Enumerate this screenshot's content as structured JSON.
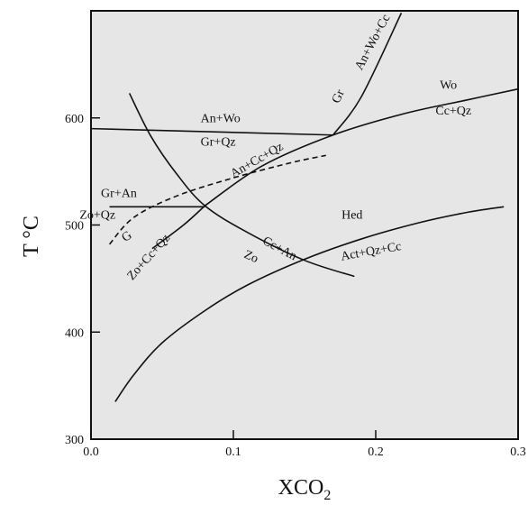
{
  "chart_data": {
    "type": "line",
    "xlabel": "XCO",
    "xlabel_subscript": "2",
    "ylabel": "T °C",
    "xlim": [
      0.0,
      0.3
    ],
    "ylim": [
      300,
      700
    ],
    "x_ticks": [
      "0.0",
      "0.1",
      "0.2",
      "0.3"
    ],
    "y_ticks": [
      "300",
      "400",
      "500",
      "600"
    ],
    "grid": false,
    "series": [
      {
        "id": "an-wo-gr-qz",
        "style": "solid",
        "points": [
          [
            0.0,
            590
          ],
          [
            0.17,
            584
          ]
        ]
      },
      {
        "id": "gr-an-wo-cc",
        "style": "solid",
        "points": [
          [
            0.17,
            584
          ],
          [
            0.19,
            620
          ],
          [
            0.218,
            698
          ]
        ]
      },
      {
        "id": "wo-cc-qz",
        "style": "solid",
        "points": [
          [
            0.08,
            518
          ],
          [
            0.12,
            555
          ],
          [
            0.17,
            584
          ],
          [
            0.22,
            604
          ],
          [
            0.265,
            617
          ],
          [
            0.3,
            627
          ]
        ]
      },
      {
        "id": "zo-cc-qz-an",
        "style": "solid",
        "points": [
          [
            0.043,
            478
          ],
          [
            0.065,
            500
          ],
          [
            0.08,
            518
          ]
        ]
      },
      {
        "id": "gr-an-zo-qz",
        "style": "solid",
        "points": [
          [
            0.013,
            517
          ],
          [
            0.08,
            517
          ]
        ]
      },
      {
        "id": "dashed-reaction",
        "style": "dashed",
        "points": [
          [
            0.013,
            482
          ],
          [
            0.03,
            507
          ],
          [
            0.06,
            527
          ],
          [
            0.1,
            544
          ],
          [
            0.14,
            558
          ],
          [
            0.165,
            565
          ]
        ]
      },
      {
        "id": "zo-cc-an",
        "style": "solid",
        "points": [
          [
            0.027,
            623
          ],
          [
            0.042,
            583
          ],
          [
            0.06,
            548
          ],
          [
            0.08,
            518
          ],
          [
            0.11,
            493
          ],
          [
            0.15,
            467
          ],
          [
            0.185,
            452
          ]
        ]
      },
      {
        "id": "hed-act-qz-cc",
        "style": "solid",
        "points": [
          [
            0.017,
            335
          ],
          [
            0.03,
            360
          ],
          [
            0.05,
            390
          ],
          [
            0.08,
            420
          ],
          [
            0.11,
            444
          ],
          [
            0.15,
            468
          ],
          [
            0.19,
            487
          ],
          [
            0.23,
            502
          ],
          [
            0.265,
            512
          ],
          [
            0.29,
            517
          ]
        ]
      }
    ],
    "annotations": [
      {
        "text": "An+Wo",
        "x": 0.077,
        "y": 596,
        "rotate": 0
      },
      {
        "text": "Gr+Qz",
        "x": 0.077,
        "y": 574,
        "rotate": 0
      },
      {
        "text": "Gr",
        "x": 0.174,
        "y": 613,
        "rotate": -65
      },
      {
        "text": "An+Wo+Cc",
        "x": 0.19,
        "y": 644,
        "rotate": -62
      },
      {
        "text": "Wo",
        "x": 0.245,
        "y": 627,
        "rotate": 0
      },
      {
        "text": "Cc+Qz",
        "x": 0.242,
        "y": 603,
        "rotate": 0
      },
      {
        "text": "Gr+An",
        "x": 0.007,
        "y": 526,
        "rotate": 0
      },
      {
        "text": "Zo+Qz",
        "x": -0.008,
        "y": 506,
        "rotate": 0
      },
      {
        "text": "An+Cc+Qz",
        "x": 0.1,
        "y": 544,
        "rotate": -30
      },
      {
        "text": "Cc+An",
        "x": 0.12,
        "y": 483,
        "rotate": 28
      },
      {
        "text": "Zo",
        "x": 0.107,
        "y": 470,
        "rotate": 24
      },
      {
        "text": "G",
        "x": 0.024,
        "y": 484,
        "rotate": -35
      },
      {
        "text": "Zo+Cc+Qz",
        "x": 0.029,
        "y": 448,
        "rotate": -48
      },
      {
        "text": "Hed",
        "x": 0.176,
        "y": 506,
        "rotate": 0
      },
      {
        "text": "Act+Qz+Cc",
        "x": 0.176,
        "y": 467,
        "rotate": -10
      }
    ]
  }
}
